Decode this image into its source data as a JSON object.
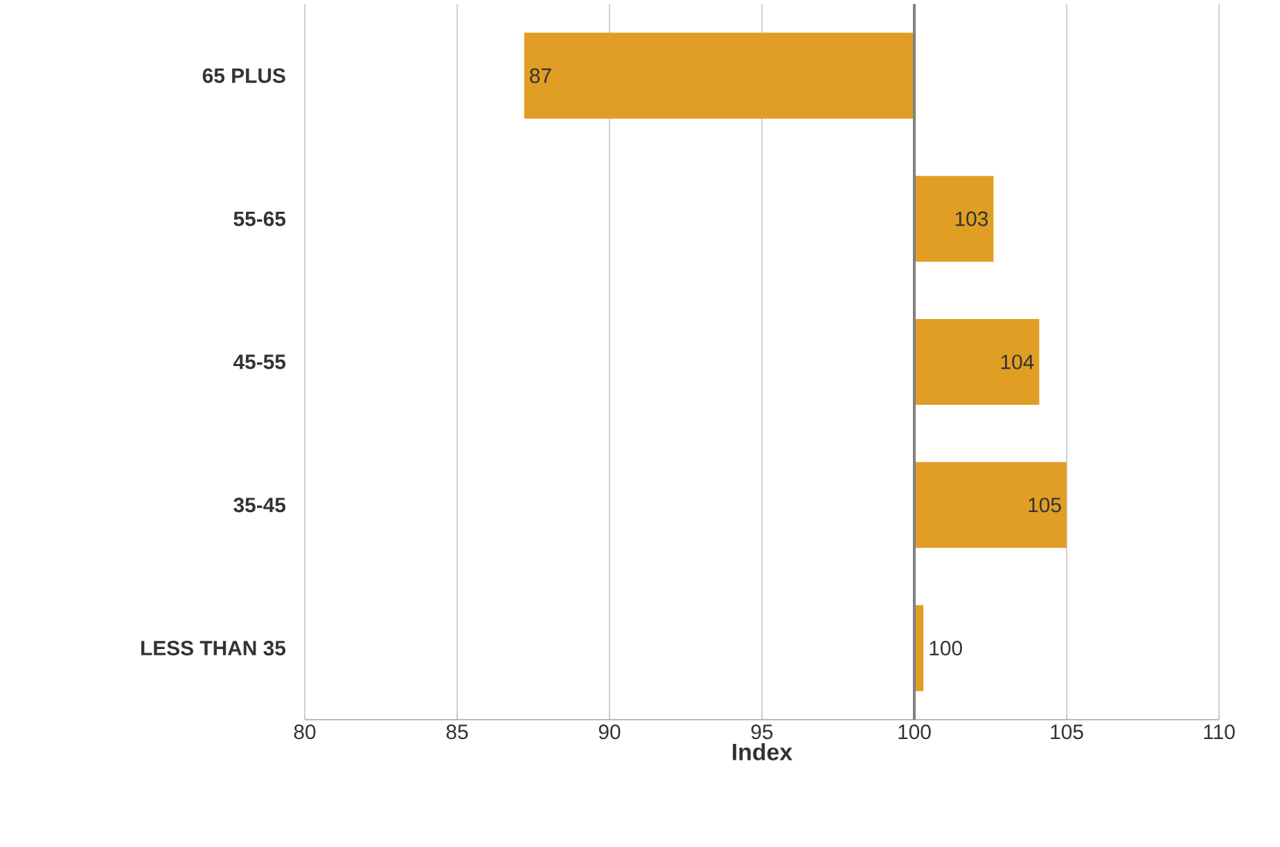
{
  "chart_data": {
    "type": "bar",
    "orientation": "horizontal",
    "xlabel": "Index",
    "categories": [
      "65 PLUS",
      "55-65",
      "45-55",
      "35-45",
      "LESS THAN 35"
    ],
    "base": [
      100,
      100,
      100,
      100,
      100
    ],
    "values": [
      -12.8,
      2.6,
      4.1,
      5.0,
      0.3
    ],
    "value_labels": [
      "87",
      "103",
      "104",
      "105",
      "100"
    ],
    "color": "#e09e24",
    "xlim": [
      80,
      110
    ],
    "xticks": [
      80,
      85,
      90,
      95,
      100,
      105,
      110
    ],
    "grid": "x",
    "ref_lines": [
      {
        "axis": "x",
        "value": 100,
        "color": "#808080"
      }
    ]
  }
}
